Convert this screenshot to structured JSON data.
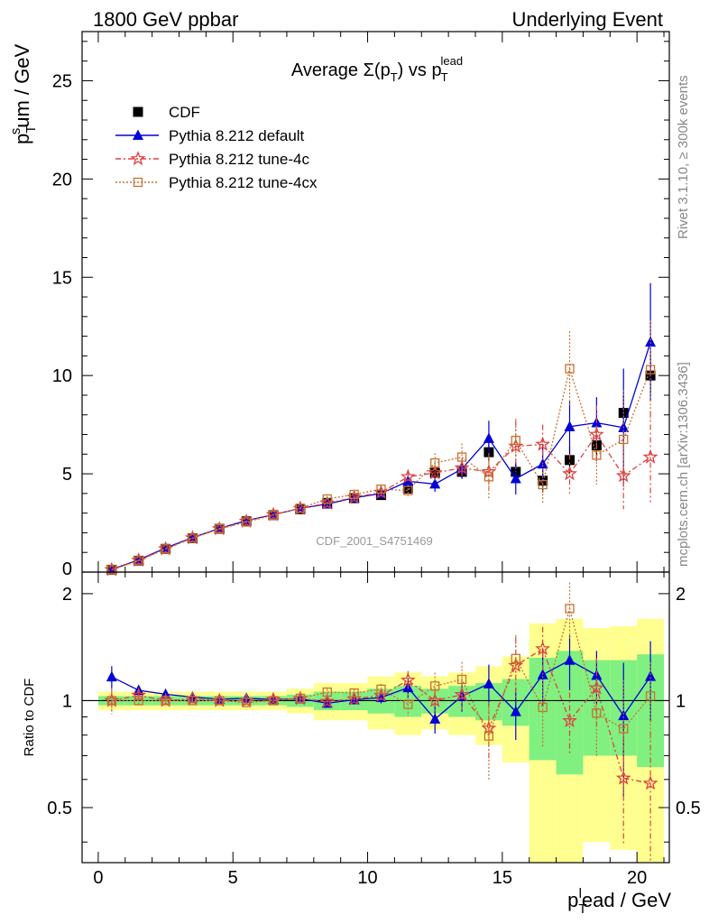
{
  "header": {
    "left": "1800 GeV ppbar",
    "right": "Underlying Event"
  },
  "side": {
    "rivet": "Rivet 3.1.10, ≥ 300k events",
    "mcplots": "mcplots.cern.ch [arXiv:1306.3436]"
  },
  "chart_data": {
    "type": "scatter",
    "title": {
      "prefix": "Average ",
      "sigma": "Σ(p",
      "sub": "T",
      "mid": ") vs p",
      "sup": "lead",
      "sub2": "T"
    },
    "watermark": "CDF_2001_S4751469",
    "ylabel": {
      "main": "p",
      "sup": "s",
      "sub": "T",
      "rest": "um / GeV"
    },
    "xlabel": {
      "main": "p",
      "sup": "l",
      "sub": "T",
      "rest": "ead / GeV"
    },
    "ratio_ylabel": "Ratio to CDF",
    "xlim": [
      -0.6,
      21.2
    ],
    "ylim": [
      0,
      27.5
    ],
    "ratio_ylim": [
      0.35,
      2.3
    ],
    "x_ticks": [
      "0",
      "5",
      "10",
      "15",
      "20"
    ],
    "y_ticks": [
      "5",
      "10",
      "15",
      "20",
      "25"
    ],
    "ratio_ticks": [
      "0.5",
      "1",
      "2"
    ],
    "x": [
      0.5,
      1.5,
      2.5,
      3.5,
      4.5,
      5.5,
      6.5,
      7.5,
      8.5,
      9.5,
      10.5,
      11.5,
      12.5,
      13.5,
      14.5,
      15.5,
      16.5,
      17.5,
      18.5,
      19.5,
      20.5
    ],
    "series": [
      {
        "name": "CDF",
        "color": "#000000",
        "marker": "filled-square",
        "values": [
          0.12,
          0.58,
          1.18,
          1.72,
          2.2,
          2.58,
          2.9,
          3.2,
          3.52,
          3.76,
          3.92,
          4.25,
          5.05,
          5.1,
          6.1,
          5.1,
          4.65,
          5.7,
          6.45,
          8.1,
          10.0
        ],
        "err": [
          0.01,
          0.03,
          0.05,
          0.07,
          0.09,
          0.1,
          0.12,
          0.13,
          0.15,
          0.18,
          0.2,
          0.25,
          0.3,
          0.35,
          0.45,
          0.5,
          0.6,
          0.7,
          0.8,
          0.9,
          1.0
        ]
      },
      {
        "name": "Pythia 8.212 default",
        "color": "#0000d8",
        "marker": "filled-triangle",
        "values": [
          0.14,
          0.62,
          1.23,
          1.76,
          2.22,
          2.62,
          2.92,
          3.24,
          3.46,
          3.78,
          4.0,
          4.62,
          4.48,
          5.25,
          6.8,
          4.75,
          5.5,
          7.4,
          7.6,
          7.35,
          11.7
        ],
        "err": [
          0.01,
          0.02,
          0.03,
          0.03,
          0.04,
          0.05,
          0.06,
          0.07,
          0.08,
          0.1,
          0.15,
          0.3,
          0.4,
          0.5,
          0.9,
          0.8,
          1.0,
          1.3,
          1.3,
          3.0,
          3.0
        ]
      },
      {
        "name": "Pythia 8.212 tune-4c",
        "color": "#e04040",
        "marker": "open-star",
        "values": [
          0.12,
          0.6,
          1.18,
          1.74,
          2.2,
          2.58,
          2.92,
          3.24,
          3.5,
          3.8,
          4.05,
          4.85,
          5.05,
          5.3,
          5.1,
          6.4,
          6.5,
          5.0,
          7.0,
          4.9,
          5.85
        ],
        "err": [
          0.01,
          0.02,
          0.03,
          0.03,
          0.04,
          0.05,
          0.06,
          0.07,
          0.08,
          0.1,
          0.15,
          0.3,
          0.4,
          0.5,
          0.9,
          1.3,
          1.0,
          1.0,
          1.5,
          1.7,
          2.3
        ]
      },
      {
        "name": "Pythia 8.212 tune-4cx",
        "color": "#c87030",
        "marker": "open-square",
        "values": [
          0.12,
          0.58,
          1.18,
          1.72,
          2.2,
          2.55,
          2.9,
          3.25,
          3.72,
          3.95,
          4.22,
          4.15,
          5.55,
          5.85,
          4.85,
          6.7,
          4.45,
          10.35,
          5.95,
          6.75,
          10.3
        ],
        "err": [
          0.01,
          0.02,
          0.03,
          0.03,
          0.04,
          0.05,
          0.06,
          0.07,
          0.08,
          0.1,
          0.15,
          0.3,
          0.5,
          0.7,
          1.2,
          1.1,
          1.0,
          1.9,
          1.5,
          2.5,
          2.5
        ]
      }
    ],
    "ratio_bands": {
      "inner_color": "#80f080",
      "outer_color": "#ffff90",
      "inner": [
        0.03,
        0.03,
        0.03,
        0.03,
        0.03,
        0.03,
        0.03,
        0.04,
        0.06,
        0.06,
        0.08,
        0.1,
        0.08,
        0.1,
        0.12,
        0.15,
        0.32,
        0.38,
        0.3,
        0.3,
        0.35
      ],
      "outer": [
        0.06,
        0.06,
        0.06,
        0.06,
        0.06,
        0.06,
        0.06,
        0.08,
        0.12,
        0.12,
        0.17,
        0.2,
        0.17,
        0.2,
        0.25,
        0.33,
        0.65,
        0.7,
        0.6,
        0.62,
        0.7
      ]
    }
  }
}
